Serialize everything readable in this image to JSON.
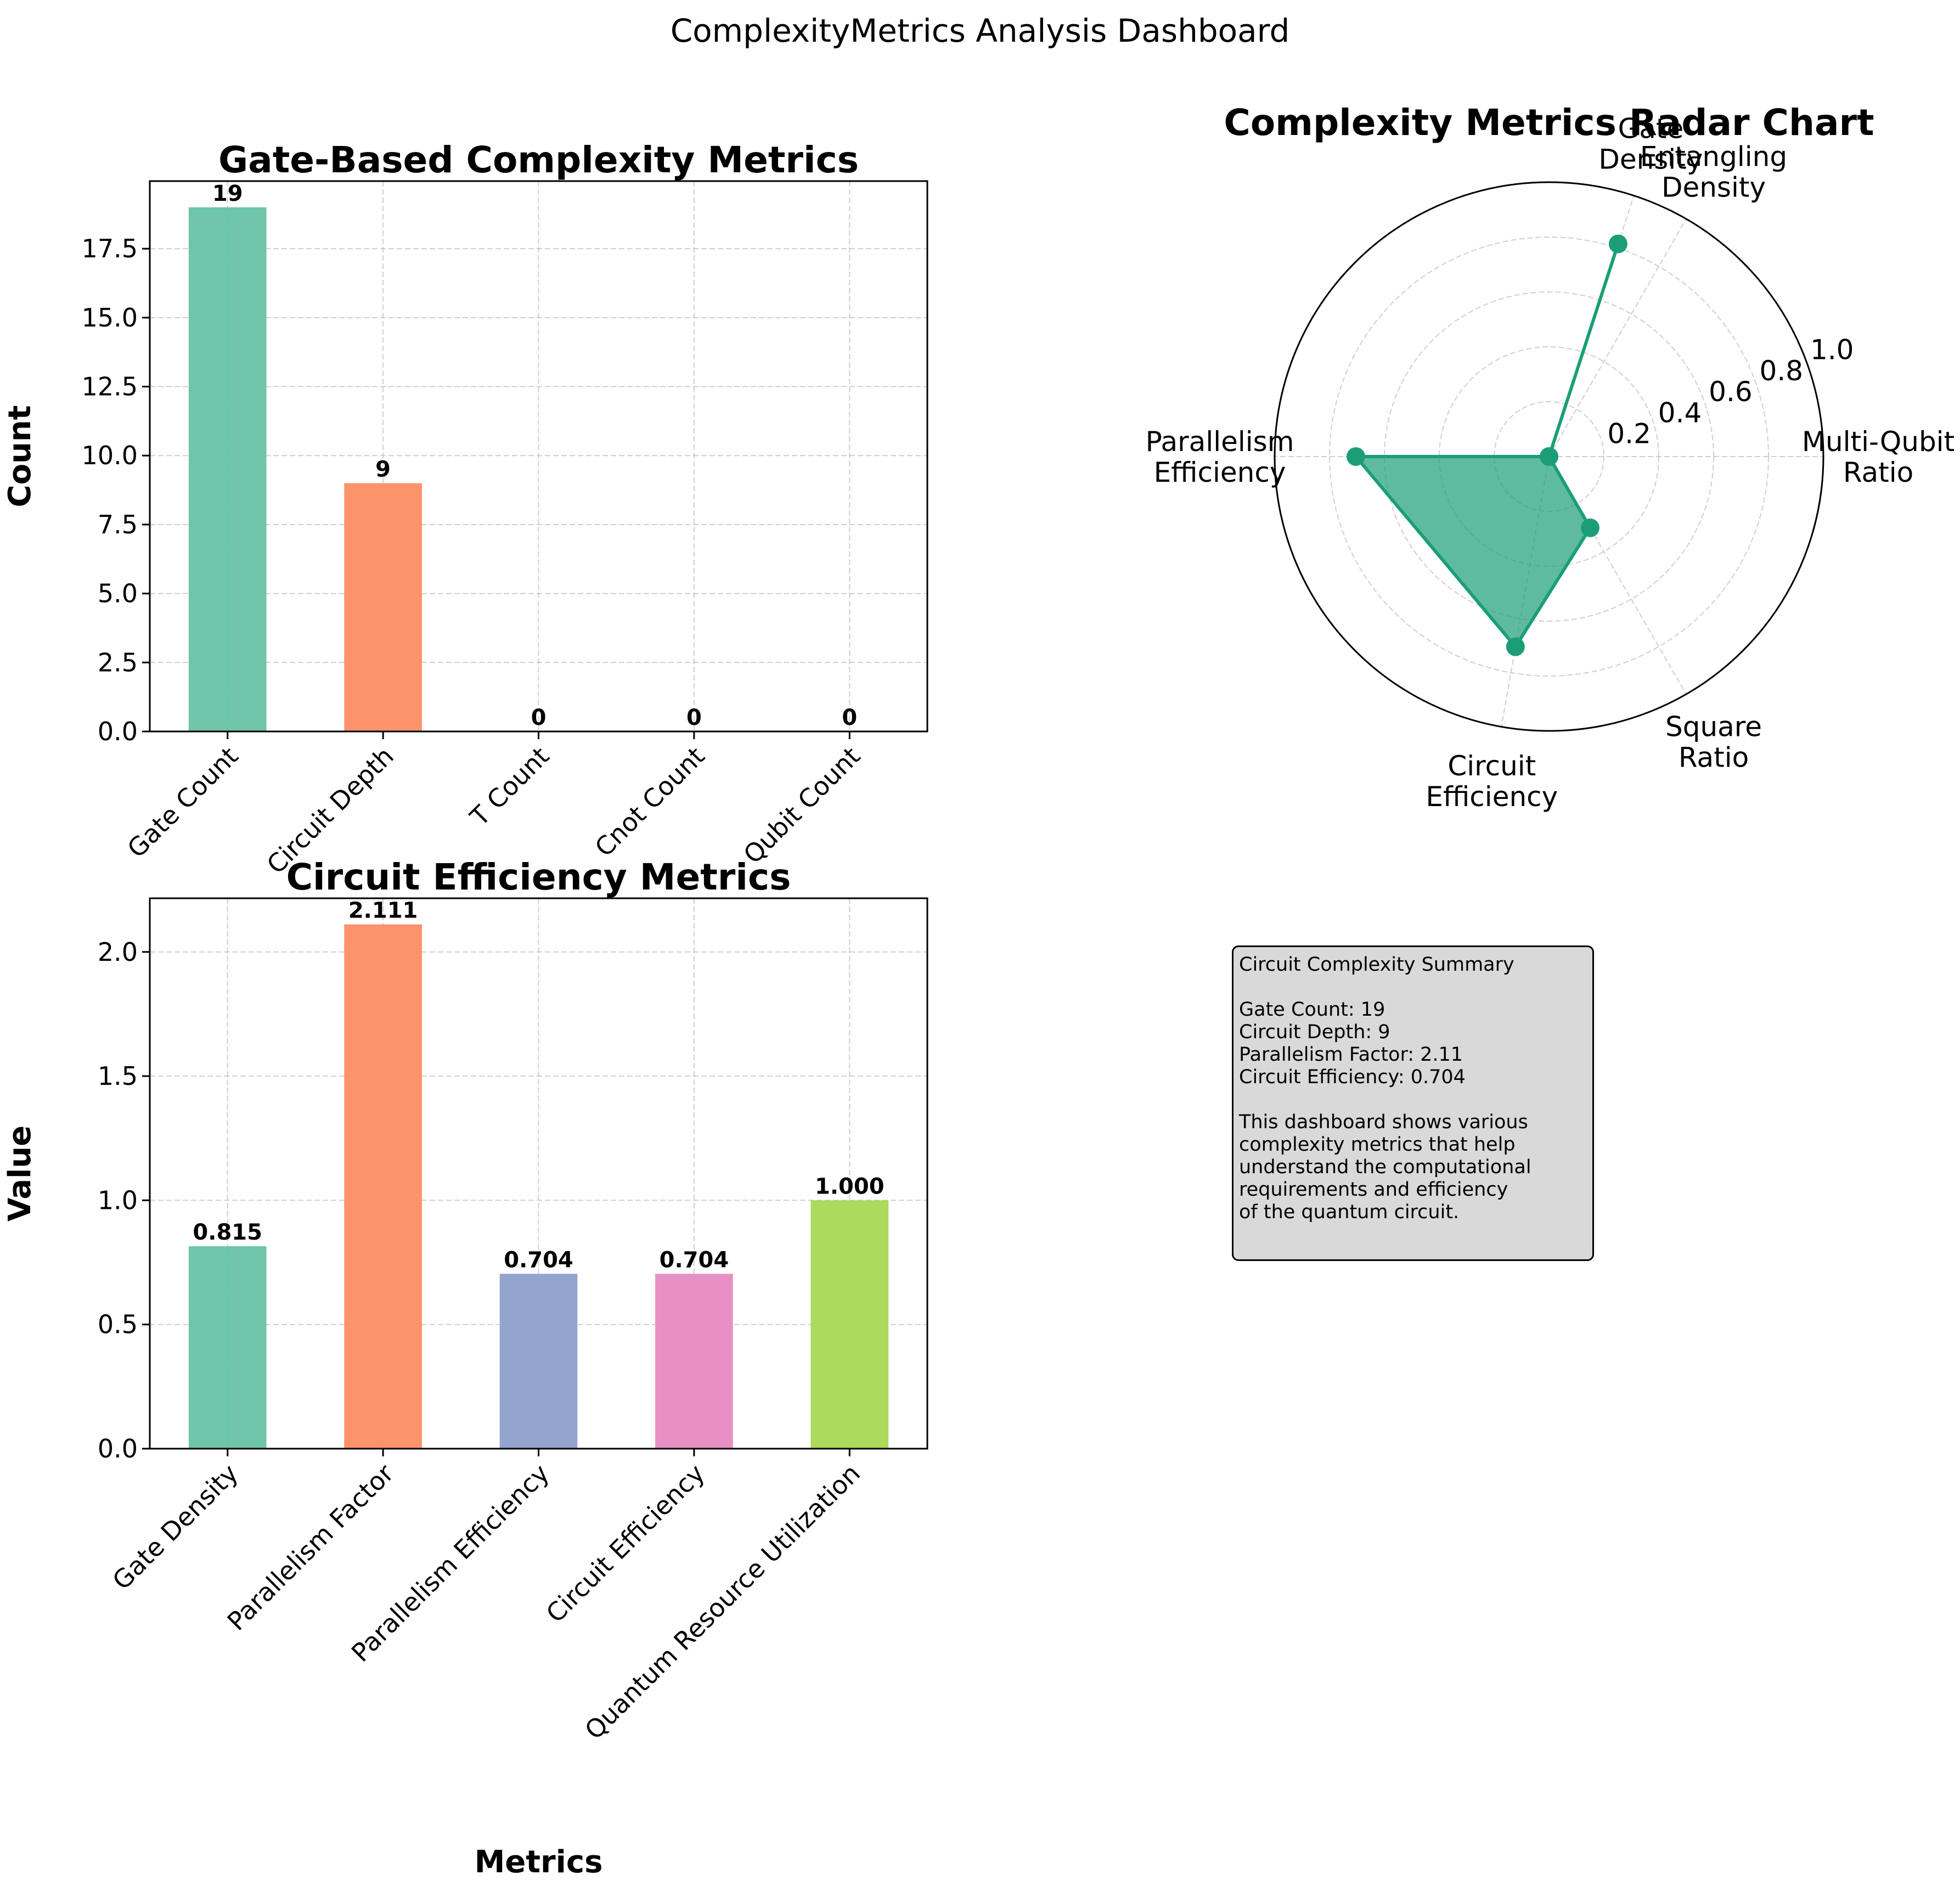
{
  "figure_title": "ComplexityMetrics Analysis Dashboard",
  "chart_data": [
    {
      "type": "bar",
      "title": "Gate-Based Complexity Metrics",
      "xlabel": "",
      "ylabel": "Count",
      "categories": [
        "Gate Count",
        "Circuit Depth",
        "T Count",
        "Cnot Count",
        "Qubit Count"
      ],
      "values": [
        19,
        9,
        0,
        0,
        0
      ],
      "value_labels": [
        "19",
        "9",
        "0",
        "0",
        "0"
      ],
      "colors": [
        "#66c2a5",
        "#fc8d62",
        "#8da0cb",
        "#e78ac3",
        "#a6d854"
      ],
      "ylim": [
        0,
        19.95
      ],
      "yticks": [
        0,
        2.5,
        5,
        7.5,
        10,
        12.5,
        15,
        17.5
      ],
      "ytick_labels": [
        "0.0",
        "2.5",
        "5.0",
        "7.5",
        "10.0",
        "12.5",
        "15.0",
        "17.5"
      ],
      "grid": true
    },
    {
      "type": "radar",
      "title": "Complexity Metrics Radar Chart",
      "axes": [
        "Multi-Qubit\nRatio",
        "Gate\nDensity",
        "Entangling\nDensity",
        "Parallelism\nEfficiency",
        "Circuit\nEfficiency",
        "Square\nRatio"
      ],
      "axis_angles_deg": [
        0,
        72,
        60,
        180,
        260,
        300
      ],
      "values": [
        0.0,
        0.815,
        0.0,
        0.704,
        0.704,
        0.3
      ],
      "rlim": [
        0,
        1.0
      ],
      "rticks": [
        0.2,
        0.4,
        0.6,
        0.8,
        1.0
      ],
      "rtick_labels": [
        "0.2",
        "0.4",
        "0.6",
        "0.8",
        "1.0"
      ],
      "color": "#1b9e77",
      "grid": true
    },
    {
      "type": "bar",
      "title": "Circuit Efficiency Metrics",
      "xlabel": "Metrics",
      "ylabel": "Value",
      "categories": [
        "Gate Density",
        "Parallelism Factor",
        "Parallelism Efficiency",
        "Circuit Efficiency",
        "Quantum Resource Utilization"
      ],
      "values": [
        0.815,
        2.111,
        0.704,
        0.704,
        1.0
      ],
      "value_labels": [
        "0.815",
        "2.111",
        "0.704",
        "0.704",
        "1.000"
      ],
      "colors": [
        "#66c2a5",
        "#fc8d62",
        "#8da0cb",
        "#e78ac3",
        "#a6d854"
      ],
      "ylim": [
        0,
        2.216
      ],
      "yticks": [
        0,
        0.5,
        1.0,
        1.5,
        2.0
      ],
      "ytick_labels": [
        "0.0",
        "0.5",
        "1.0",
        "1.5",
        "2.0"
      ],
      "grid": true
    }
  ],
  "summary": {
    "title": "Circuit Complexity Summary",
    "lines": [
      "Gate Count: 19",
      "Circuit Depth: 9",
      "Parallelism Factor: 2.11",
      "Circuit Efficiency: 0.704"
    ],
    "description": [
      "This dashboard shows various",
      "complexity metrics that help",
      "understand the computational",
      "requirements and efficiency",
      "of the quantum circuit."
    ]
  }
}
